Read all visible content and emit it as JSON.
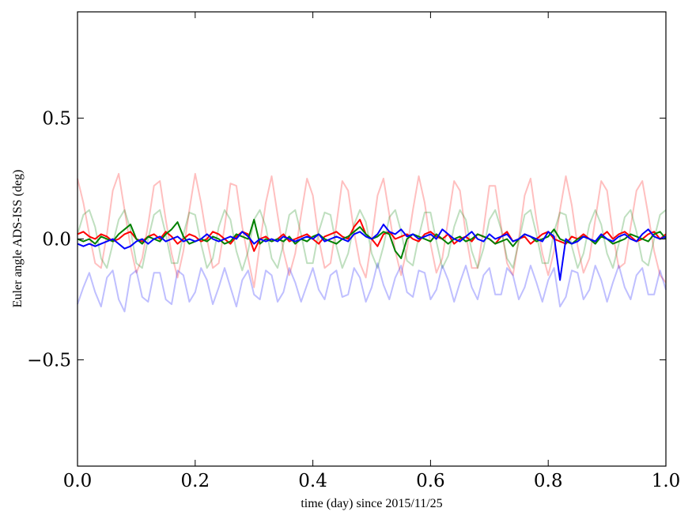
{
  "chart_data": {
    "type": "line",
    "title": "",
    "xlabel": "time (day) since 2015/11/25",
    "ylabel": "Euler angle ADS-ISS (deg)",
    "xlim": [
      0.0,
      1.0
    ],
    "ylim": [
      -0.94,
      0.94
    ],
    "grid": false,
    "legend": "none",
    "x_ticks": [
      0.0,
      0.2,
      0.4,
      0.6,
      0.8,
      1.0
    ],
    "x_tick_labels": [
      "0.0",
      "0.2",
      "0.4",
      "0.6",
      "0.8",
      "1.0"
    ],
    "y_ticks": [
      0.5,
      0.0,
      -0.5
    ],
    "y_tick_labels": [
      "0.5",
      "0.0",
      "−0.5"
    ],
    "x": [
      0,
      0.01,
      0.02,
      0.03,
      0.04,
      0.05,
      0.06,
      0.07,
      0.08,
      0.09,
      0.1,
      0.11,
      0.12,
      0.13,
      0.14,
      0.15,
      0.16,
      0.17,
      0.18,
      0.19,
      0.2,
      0.21,
      0.22,
      0.23,
      0.24,
      0.25,
      0.26,
      0.27,
      0.28,
      0.29,
      0.3,
      0.31,
      0.32,
      0.33,
      0.34,
      0.35,
      0.36,
      0.37,
      0.38,
      0.39,
      0.4,
      0.41,
      0.42,
      0.43,
      0.44,
      0.45,
      0.46,
      0.47,
      0.48,
      0.49,
      0.5,
      0.51,
      0.52,
      0.53,
      0.54,
      0.55,
      0.56,
      0.57,
      0.58,
      0.59,
      0.6,
      0.61,
      0.62,
      0.63,
      0.64,
      0.65,
      0.66,
      0.67,
      0.68,
      0.69,
      0.7,
      0.71,
      0.72,
      0.73,
      0.74,
      0.75,
      0.76,
      0.77,
      0.78,
      0.79,
      0.8,
      0.81,
      0.82,
      0.83,
      0.84,
      0.85,
      0.86,
      0.87,
      0.88,
      0.89,
      0.9,
      0.91,
      0.92,
      0.93,
      0.94,
      0.95,
      0.96,
      0.97,
      0.98,
      0.99,
      1.0
    ],
    "series": [
      {
        "color": "#ff0000",
        "alpha": 0.25,
        "width": 2,
        "values": [
          0.25,
          0.15,
          0.02,
          -0.1,
          -0.12,
          0.02,
          0.2,
          0.27,
          0.12,
          -0.03,
          -0.14,
          -0.08,
          0.06,
          0.22,
          0.24,
          0.08,
          -0.06,
          -0.16,
          -0.05,
          0.12,
          0.27,
          0.15,
          0.0,
          -0.12,
          -0.1,
          0.05,
          0.23,
          0.22,
          0.05,
          -0.08,
          -0.2,
          -0.02,
          0.15,
          0.26,
          0.1,
          -0.05,
          -0.15,
          -0.06,
          0.1,
          0.25,
          0.18,
          0.0,
          -0.12,
          -0.1,
          0.06,
          0.24,
          0.2,
          0.03,
          -0.1,
          -0.16,
          0.0,
          0.18,
          0.25,
          0.1,
          -0.05,
          -0.15,
          -0.04,
          0.12,
          0.26,
          0.15,
          -0.02,
          -0.14,
          -0.08,
          0.08,
          0.24,
          0.2,
          0.02,
          -0.12,
          -0.12,
          0.04,
          0.22,
          0.22,
          0.05,
          -0.1,
          -0.15,
          0.0,
          0.18,
          0.25,
          0.08,
          -0.06,
          -0.15,
          -0.05,
          0.12,
          0.26,
          0.14,
          -0.03,
          -0.14,
          -0.08,
          0.08,
          0.24,
          0.2,
          0.02,
          -0.12,
          -0.1,
          0.05,
          0.2,
          0.24,
          0.1,
          -0.05,
          -0.15,
          -0.18
        ]
      },
      {
        "color": "#008000",
        "alpha": 0.25,
        "width": 2,
        "values": [
          0.02,
          0.1,
          0.12,
          0.05,
          -0.08,
          -0.12,
          -0.02,
          0.08,
          0.12,
          0.04,
          -0.1,
          -0.12,
          0.0,
          0.1,
          0.12,
          0.02,
          -0.1,
          -0.1,
          0.02,
          0.11,
          0.1,
          -0.02,
          -0.12,
          -0.08,
          0.05,
          0.12,
          0.08,
          -0.05,
          -0.13,
          -0.05,
          0.08,
          0.12,
          0.05,
          -0.08,
          -0.12,
          -0.02,
          0.1,
          0.12,
          0.02,
          -0.1,
          -0.1,
          0.03,
          0.11,
          0.1,
          -0.03,
          -0.12,
          -0.06,
          0.06,
          0.12,
          0.07,
          -0.06,
          -0.12,
          -0.03,
          0.09,
          0.12,
          0.03,
          -0.09,
          -0.11,
          0.01,
          0.11,
          0.11,
          -0.01,
          -0.12,
          -0.07,
          0.05,
          0.12,
          0.08,
          -0.05,
          -0.12,
          -0.04,
          0.08,
          0.12,
          0.04,
          -0.08,
          -0.12,
          -0.01,
          0.1,
          0.12,
          0.02,
          -0.1,
          -0.1,
          0.03,
          0.11,
          0.1,
          -0.03,
          -0.12,
          -0.06,
          0.06,
          0.12,
          0.06,
          -0.06,
          -0.12,
          -0.02,
          0.09,
          0.12,
          0.03,
          -0.09,
          -0.11,
          0.0,
          0.1,
          0.12
        ]
      },
      {
        "color": "#0000ff",
        "alpha": 0.25,
        "width": 2,
        "values": [
          -0.27,
          -0.2,
          -0.14,
          -0.22,
          -0.28,
          -0.16,
          -0.13,
          -0.25,
          -0.3,
          -0.15,
          -0.13,
          -0.24,
          -0.26,
          -0.14,
          -0.14,
          -0.25,
          -0.27,
          -0.13,
          -0.15,
          -0.26,
          -0.22,
          -0.12,
          -0.17,
          -0.27,
          -0.2,
          -0.12,
          -0.2,
          -0.28,
          -0.17,
          -0.13,
          -0.23,
          -0.25,
          -0.13,
          -0.15,
          -0.26,
          -0.22,
          -0.12,
          -0.18,
          -0.26,
          -0.19,
          -0.12,
          -0.21,
          -0.25,
          -0.15,
          -0.13,
          -0.24,
          -0.23,
          -0.12,
          -0.16,
          -0.26,
          -0.2,
          -0.1,
          -0.19,
          -0.25,
          -0.16,
          -0.11,
          -0.22,
          -0.24,
          -0.13,
          -0.14,
          -0.25,
          -0.21,
          -0.11,
          -0.17,
          -0.26,
          -0.18,
          -0.11,
          -0.2,
          -0.25,
          -0.15,
          -0.12,
          -0.23,
          -0.23,
          -0.12,
          -0.15,
          -0.25,
          -0.2,
          -0.11,
          -0.18,
          -0.26,
          -0.17,
          -0.12,
          -0.28,
          -0.24,
          -0.13,
          -0.14,
          -0.25,
          -0.21,
          -0.11,
          -0.17,
          -0.26,
          -0.18,
          -0.11,
          -0.2,
          -0.25,
          -0.15,
          -0.12,
          -0.23,
          -0.23,
          -0.13,
          -0.21
        ]
      },
      {
        "color": "#ff0000",
        "alpha": 1,
        "width": 2,
        "values": [
          0.02,
          0.03,
          0.01,
          0.0,
          0.02,
          0.01,
          -0.01,
          0.0,
          0.02,
          0.03,
          0.0,
          -0.01,
          0.01,
          0.02,
          0.0,
          0.03,
          0.01,
          -0.02,
          0.0,
          0.02,
          0.01,
          -0.01,
          0.0,
          0.03,
          0.02,
          0.0,
          -0.02,
          0.01,
          0.03,
          0.02,
          -0.05,
          0.0,
          0.01,
          -0.01,
          0.0,
          0.02,
          -0.01,
          0.0,
          0.01,
          0.02,
          0.0,
          -0.02,
          0.01,
          0.02,
          0.03,
          0.01,
          0.0,
          0.05,
          0.08,
          0.02,
          0.0,
          -0.03,
          0.02,
          0.03,
          0.0,
          0.01,
          0.02,
          0.0,
          -0.01,
          0.02,
          0.03,
          0.01,
          0.0,
          0.02,
          -0.02,
          0.0,
          0.01,
          -0.01,
          0.02,
          0.01,
          0.0,
          -0.02,
          0.01,
          0.03,
          -0.01,
          0.0,
          0.01,
          -0.02,
          0.0,
          0.02,
          0.03,
          0.0,
          -0.01,
          -0.02,
          0.01,
          0.0,
          0.02,
          0.0,
          -0.01,
          0.01,
          0.03,
          0.0,
          0.02,
          0.03,
          0.01,
          -0.01,
          0.0,
          0.02,
          0.03,
          0.0,
          0.02
        ]
      },
      {
        "color": "#008000",
        "alpha": 1,
        "width": 2,
        "values": [
          0.0,
          -0.01,
          0.0,
          -0.02,
          0.01,
          0.0,
          -0.01,
          0.02,
          0.04,
          0.06,
          0.0,
          -0.02,
          0.01,
          0.0,
          -0.01,
          0.02,
          0.04,
          0.07,
          0.01,
          -0.02,
          -0.01,
          0.0,
          -0.01,
          0.01,
          0.0,
          -0.02,
          -0.01,
          0.02,
          0.01,
          0.0,
          0.08,
          -0.02,
          0.0,
          -0.01,
          0.0,
          -0.01,
          0.01,
          -0.02,
          0.0,
          -0.01,
          0.01,
          0.02,
          0.0,
          -0.01,
          -0.02,
          0.0,
          0.01,
          0.03,
          0.05,
          0.02,
          0.0,
          0.01,
          0.03,
          0.02,
          -0.05,
          -0.08,
          0.0,
          0.02,
          0.01,
          0.0,
          -0.01,
          0.02,
          0.0,
          -0.02,
          0.0,
          0.01,
          -0.01,
          0.0,
          0.02,
          0.01,
          0.0,
          -0.02,
          -0.01,
          0.0,
          -0.03,
          0.0,
          0.02,
          0.01,
          -0.01,
          0.0,
          0.01,
          0.04,
          0.0,
          -0.01,
          -0.02,
          0.0,
          0.01,
          0.0,
          -0.02,
          0.01,
          0.0,
          -0.02,
          -0.01,
          0.0,
          0.02,
          0.01,
          0.0,
          -0.01,
          0.02,
          0.03,
          0.0
        ]
      },
      {
        "color": "#0000ff",
        "alpha": 1,
        "width": 2,
        "values": [
          -0.02,
          -0.03,
          -0.02,
          -0.03,
          -0.02,
          -0.01,
          0.0,
          -0.02,
          -0.04,
          -0.03,
          -0.01,
          0.0,
          -0.02,
          0.0,
          0.01,
          -0.01,
          0.0,
          0.01,
          -0.01,
          0.0,
          -0.01,
          0.0,
          0.02,
          0.0,
          -0.01,
          0.0,
          0.01,
          0.0,
          0.03,
          0.01,
          -0.02,
          0.0,
          -0.01,
          0.0,
          -0.01,
          0.01,
          0.0,
          -0.01,
          0.0,
          0.01,
          0.0,
          0.02,
          -0.01,
          0.0,
          0.01,
          0.0,
          -0.01,
          0.02,
          0.03,
          0.01,
          0.0,
          0.02,
          0.06,
          0.03,
          0.02,
          0.04,
          0.01,
          0.02,
          0.0,
          0.01,
          0.02,
          0.0,
          0.04,
          0.02,
          0.0,
          -0.01,
          0.01,
          0.03,
          0.0,
          -0.01,
          0.02,
          0.0,
          0.01,
          0.02,
          -0.01,
          0.0,
          0.02,
          0.01,
          0.0,
          -0.01,
          0.03,
          0.01,
          -0.17,
          0.0,
          -0.02,
          -0.01,
          0.01,
          0.0,
          -0.01,
          0.02,
          0.0,
          -0.01,
          0.01,
          0.02,
          0.0,
          -0.01,
          0.02,
          0.04,
          0.01,
          0.0,
          0.01
        ]
      }
    ]
  }
}
